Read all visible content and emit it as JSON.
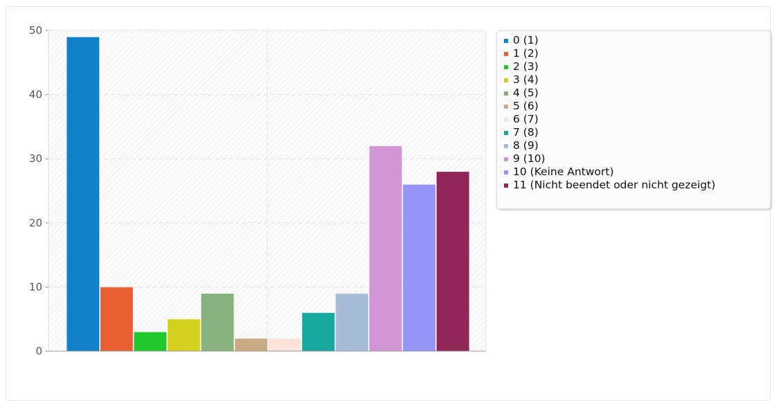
{
  "chart_data": {
    "type": "bar",
    "ylim": [
      0,
      50
    ],
    "yticks": [
      "0",
      "10",
      "20",
      "30",
      "40",
      "50"
    ],
    "grid": true,
    "legend_position": "right",
    "series": [
      {
        "name": "0 (1)",
        "value": 49,
        "color": "#1281c9"
      },
      {
        "name": "1 (2)",
        "value": 10,
        "color": "#e85f33"
      },
      {
        "name": "2 (3)",
        "value": 3,
        "color": "#21c82b"
      },
      {
        "name": "3 (4)",
        "value": 5,
        "color": "#d3d11d"
      },
      {
        "name": "4 (5)",
        "value": 9,
        "color": "#88b180"
      },
      {
        "name": "5 (6)",
        "value": 2,
        "color": "#c9aa84"
      },
      {
        "name": "6 (7)",
        "value": 2,
        "color": "#fde4da"
      },
      {
        "name": "7 (8)",
        "value": 6,
        "color": "#17a8a0"
      },
      {
        "name": "8 (9)",
        "value": 9,
        "color": "#a7bcd6"
      },
      {
        "name": "9 (10)",
        "value": 32,
        "color": "#d295d6"
      },
      {
        "name": "10 (Keine Antwort)",
        "value": 26,
        "color": "#9593f5"
      },
      {
        "name": "11 (Nicht beendet oder nicht gezeigt)",
        "value": 28,
        "color": "#902658"
      }
    ]
  }
}
